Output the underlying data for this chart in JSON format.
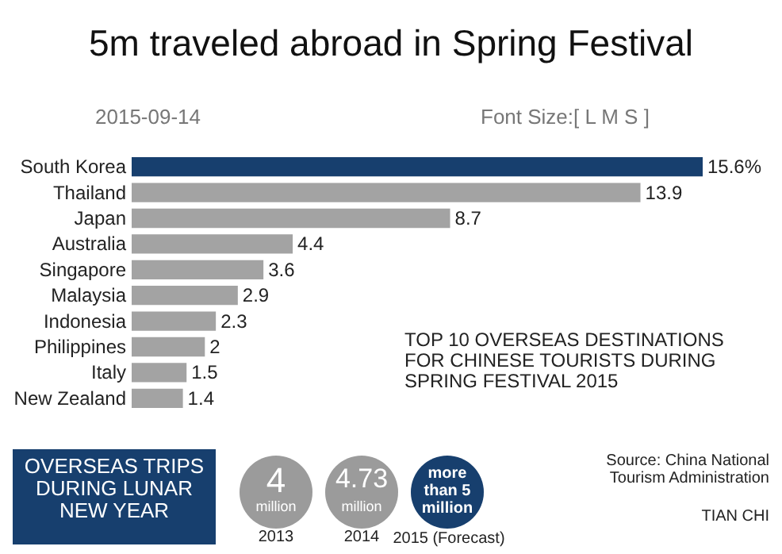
{
  "chart_data": {
    "type": "bar",
    "orientation": "horizontal",
    "title": "5m traveled abroad in Spring Festival",
    "categories": [
      "South Korea",
      "Thailand",
      "Japan",
      "Australia",
      "Singapore",
      "Malaysia",
      "Indonesia",
      "Philippines",
      "Italy",
      "New Zealand"
    ],
    "values": [
      15.6,
      13.9,
      8.7,
      4.4,
      3.6,
      2.9,
      2.3,
      2,
      1.5,
      1.4
    ],
    "value_labels": [
      "15.6%",
      "13.9",
      "8.7",
      "4.4",
      "3.6",
      "2.9",
      "2.3",
      "2",
      "1.5",
      "1.4"
    ],
    "colors": [
      "#173f6e",
      "#a3a3a3",
      "#a3a3a3",
      "#a3a3a3",
      "#a3a3a3",
      "#a3a3a3",
      "#a3a3a3",
      "#a3a3a3",
      "#a3a3a3",
      "#a3a3a3"
    ],
    "annotations": [
      "2015-09-14",
      "Font Size:[ L M S ]",
      "TOP 10 OVERSEAS DESTINATIONS FOR CHINESE TOURISTS DURING SPRING FESTIVAL 2015",
      "OVERSEAS TRIPS DURING LUNAR NEW YEAR",
      "4",
      "million",
      "2013",
      "4.73",
      "million",
      "2014",
      "more than 5 million",
      "2015 (Forecast)",
      "Source: China National Tourism Administration",
      "TIAN CHI"
    ]
  }
}
